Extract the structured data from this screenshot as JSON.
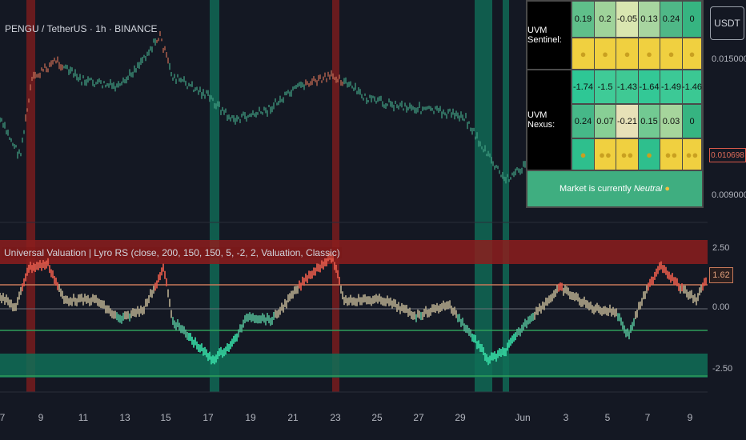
{
  "header": {
    "symbol": "PENGU / TetherUS · 1h · BINANCE",
    "currency": "USDT"
  },
  "indicator": {
    "label": "Universal Valuation | Lyro RS (close, 200, 150, 150, 5, -2, 2, Valuation, Classic)",
    "current_value": "1.62"
  },
  "price_scale": {
    "labels": [
      "0.015000",
      "0.010698",
      "0.009000"
    ],
    "current_price": "0.010698"
  },
  "indicator_scale": {
    "labels": [
      "2.50",
      "0.00",
      "-2.50"
    ]
  },
  "time_axis": [
    "7",
    "9",
    "11",
    "13",
    "15",
    "17",
    "19",
    "21",
    "23",
    "25",
    "27",
    "29",
    "Jun",
    "3",
    "5",
    "7",
    "9"
  ],
  "colors": {
    "overvalued": "#e35a4a",
    "undervalued": "#36d9a3",
    "neutral": "#d9c57a",
    "band_red": "#8c1d1d",
    "band_green": "#0f6e57"
  },
  "uvm_table": {
    "sentinel_label": "UVM Sentinel:",
    "sentinel_values": [
      "0.19",
      "0.2",
      "-0.05",
      "0.13",
      "0.24",
      "0"
    ],
    "nexus_label": "UVM Nexus:",
    "nexus_row1": [
      "-1.74",
      "-1.5",
      "-1.43",
      "-1.64",
      "-1.49",
      "-1.46"
    ],
    "nexus_row2": [
      "0.24",
      "0.07",
      "-0.21",
      "0.15",
      "0.03",
      "0"
    ],
    "status_prefix": "Market is currently",
    "status_state": "Neutral"
  }
}
